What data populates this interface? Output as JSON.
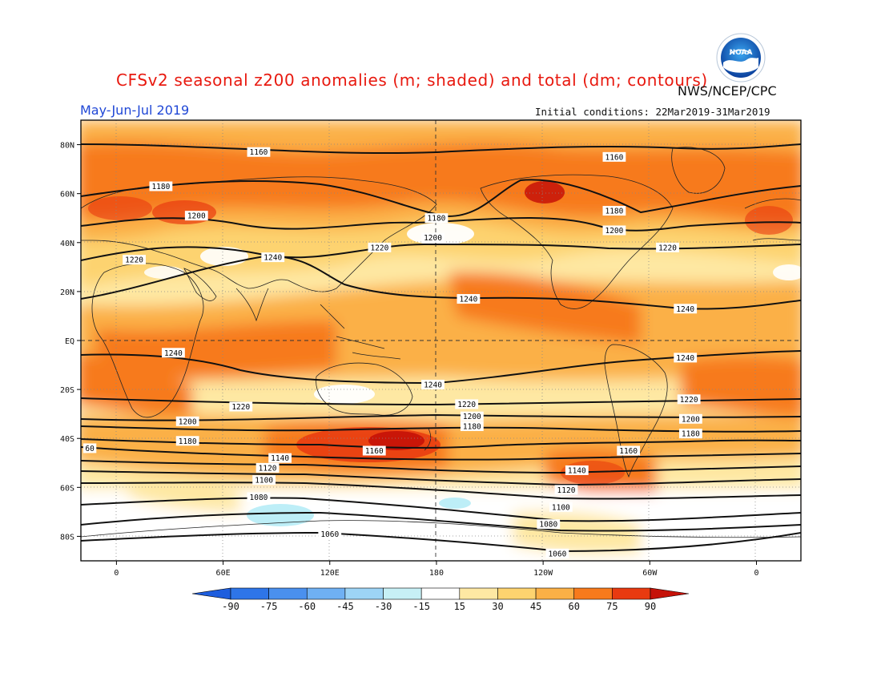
{
  "header": {
    "title": "CFSv2 seasonal z200 anomalies (m; shaded) and total (dm; contours)",
    "agency": "NWS/NCEP/CPC",
    "period": "May-Jun-Jul 2019",
    "initial_conditions": "Initial conditions: 22Mar2019-31Mar2019",
    "logo_text": "NOAA"
  },
  "map": {
    "lat_labels": [
      {
        "lat": 80,
        "text": "80N"
      },
      {
        "lat": 60,
        "text": "60N"
      },
      {
        "lat": 40,
        "text": "40N"
      },
      {
        "lat": 20,
        "text": "20N"
      },
      {
        "lat": 0,
        "text": "EQ"
      },
      {
        "lat": -20,
        "text": "20S"
      },
      {
        "lat": -40,
        "text": "40S"
      },
      {
        "lat": -60,
        "text": "60S"
      },
      {
        "lat": -80,
        "text": "80S"
      }
    ],
    "lon_labels": [
      {
        "lon": 0,
        "text": "0"
      },
      {
        "lon": 60,
        "text": "60E"
      },
      {
        "lon": 120,
        "text": "120E"
      },
      {
        "lon": 180,
        "text": "180"
      },
      {
        "lon": 240,
        "text": "120W"
      },
      {
        "lon": 300,
        "text": "60W"
      },
      {
        "lon": 360,
        "text": "0"
      }
    ],
    "lon_range": [
      -20,
      385
    ],
    "lat_range": [
      -90,
      90
    ],
    "grid": "dotted",
    "shading_anomalies": [
      {
        "lon": 0,
        "lat": 55,
        "value": 75
      },
      {
        "lon": 30,
        "lat": 50,
        "value": 90
      },
      {
        "lon": 150,
        "lat": 60,
        "value": 60
      },
      {
        "lon": 245,
        "lat": 60,
        "value": 90
      },
      {
        "lon": 330,
        "lat": 30,
        "value": 45
      },
      {
        "lon": 155,
        "lat": -45,
        "value": 90
      },
      {
        "lon": 250,
        "lat": -55,
        "value": 75
      },
      {
        "lon": 60,
        "lat": -20,
        "value": 60
      },
      {
        "lon": 200,
        "lat": 15,
        "value": 60
      },
      {
        "lon": 160,
        "lat": 42,
        "value": 15
      },
      {
        "lon": 100,
        "lat": 60,
        "value": 15
      },
      {
        "lon": 100,
        "lat": -73,
        "value": -30
      },
      {
        "lon": 180,
        "lat": -68,
        "value": -30
      },
      {
        "lon": 60,
        "lat": -75,
        "value": 15
      }
    ],
    "contour_labels": [
      {
        "lon": 80,
        "lat": 77,
        "text": "1160"
      },
      {
        "lon": 280,
        "lat": 75,
        "text": "1160"
      },
      {
        "lon": 25,
        "lat": 63,
        "text": "1180"
      },
      {
        "lon": 180,
        "lat": 50,
        "text": "1180"
      },
      {
        "lon": 280,
        "lat": 53,
        "text": "1180"
      },
      {
        "lon": 45,
        "lat": 51,
        "text": "1200"
      },
      {
        "lon": 178,
        "lat": 42,
        "text": "1200"
      },
      {
        "lon": 280,
        "lat": 45,
        "text": "1200"
      },
      {
        "lon": 10,
        "lat": 33,
        "text": "1220"
      },
      {
        "lon": 148,
        "lat": 38,
        "text": "1220"
      },
      {
        "lon": 310,
        "lat": 38,
        "text": "1220"
      },
      {
        "lon": 88,
        "lat": 34,
        "text": "1240"
      },
      {
        "lon": 198,
        "lat": 17,
        "text": "1240"
      },
      {
        "lon": 320,
        "lat": 13,
        "text": "1240"
      },
      {
        "lon": 32,
        "lat": -5,
        "text": "1240"
      },
      {
        "lon": 178,
        "lat": -18,
        "text": "1240"
      },
      {
        "lon": 320,
        "lat": -7,
        "text": "1240"
      },
      {
        "lon": 70,
        "lat": -27,
        "text": "1220"
      },
      {
        "lon": 197,
        "lat": -26,
        "text": "1220"
      },
      {
        "lon": 322,
        "lat": -24,
        "text": "1220"
      },
      {
        "lon": 40,
        "lat": -33,
        "text": "1200"
      },
      {
        "lon": 200,
        "lat": -31,
        "text": "1200"
      },
      {
        "lon": 323,
        "lat": -32,
        "text": "1200"
      },
      {
        "lon": 40,
        "lat": -41,
        "text": "1180"
      },
      {
        "lon": 200,
        "lat": -35,
        "text": "1180"
      },
      {
        "lon": 323,
        "lat": -38,
        "text": "1180"
      },
      {
        "lon": 145,
        "lat": -45,
        "text": "1160"
      },
      {
        "lon": 288,
        "lat": -45,
        "text": "1160"
      },
      {
        "lon": 92,
        "lat": -48,
        "text": "1140"
      },
      {
        "lon": 259,
        "lat": -53,
        "text": "1140"
      },
      {
        "lon": 85,
        "lat": -52,
        "text": "1120"
      },
      {
        "lon": 253,
        "lat": -61,
        "text": "1120"
      },
      {
        "lon": 83,
        "lat": -57,
        "text": "1100"
      },
      {
        "lon": 250,
        "lat": -68,
        "text": "1100"
      },
      {
        "lon": 80,
        "lat": -64,
        "text": "1080"
      },
      {
        "lon": 243,
        "lat": -75,
        "text": "1080"
      },
      {
        "lon": 120,
        "lat": -79,
        "text": "1060"
      },
      {
        "lon": 248,
        "lat": -87,
        "text": "1060"
      },
      {
        "lon": -15,
        "lat": -44,
        "text": "60"
      }
    ]
  },
  "colorbar": {
    "ticks": [
      "-90",
      "-75",
      "-60",
      "-45",
      "-30",
      "-15",
      "15",
      "30",
      "45",
      "60",
      "75",
      "90"
    ],
    "colors": [
      "#1e5ede",
      "#2e75e8",
      "#4a90ee",
      "#6fb0f3",
      "#9dd4f6",
      "#c7f0f6",
      "#ffffff",
      "#fee8a3",
      "#fdd36f",
      "#fbb046",
      "#f77a1c",
      "#e83a10",
      "#c51208"
    ]
  },
  "colors": {
    "title": "#e8190f",
    "period": "#1f47d6"
  }
}
